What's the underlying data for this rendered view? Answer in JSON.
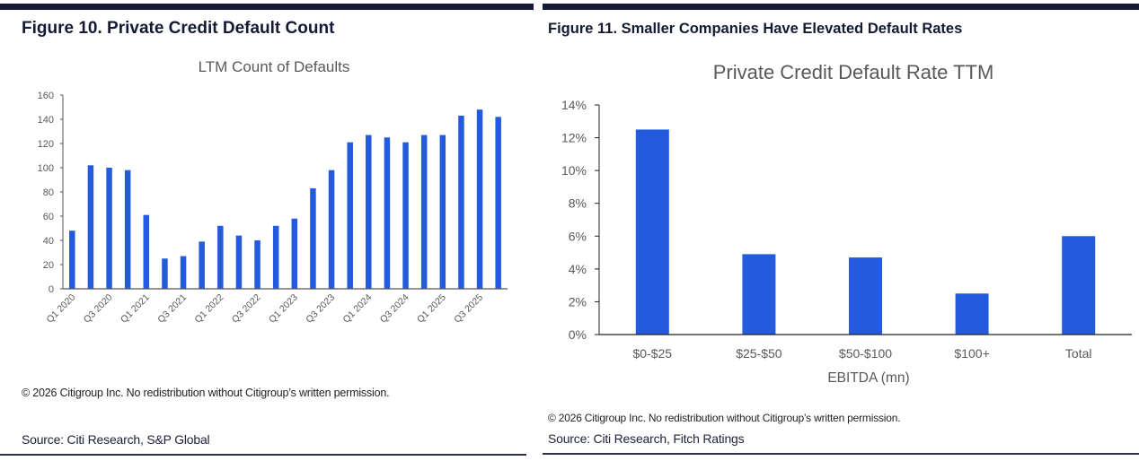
{
  "figure10": {
    "title": "Figure 10. Private Credit Default Count",
    "copyright": "© 2026 Citigroup Inc. No redistribution without Citigroup’s written permission.",
    "source": "Source: Citi Research, S&P Global"
  },
  "figure11": {
    "title": "Figure 11. Smaller Companies Have Elevated Default Rates",
    "copyright": "© 2026 Citigroup Inc. No redistribution without Citigroup’s written permission.",
    "source": "Source: Citi Research, Fitch Ratings"
  },
  "colors": {
    "bar": "#245bde",
    "axis": "#555555",
    "tick_text": "#595959",
    "title_text": "#595959"
  },
  "chart_data": [
    {
      "type": "bar",
      "title": "LTM Count of Defaults",
      "xlabel": "",
      "ylabel": "",
      "ylim": [
        0,
        160
      ],
      "yticks": [
        0,
        20,
        40,
        60,
        80,
        100,
        120,
        140,
        160
      ],
      "ytick_labels": [
        "0",
        "20",
        "40",
        "60",
        "80",
        "100",
        "120",
        "140",
        "160"
      ],
      "categories": [
        "Q1 2020",
        "Q2 2020",
        "Q3 2020",
        "Q4 2020",
        "Q1 2021",
        "Q2 2021",
        "Q3 2021",
        "Q4 2021",
        "Q1 2022",
        "Q2 2022",
        "Q3 2022",
        "Q4 2022",
        "Q1 2023",
        "Q2 2023",
        "Q3 2023",
        "Q4 2023",
        "Q1 2024",
        "Q2 2024",
        "Q3 2024",
        "Q4 2024",
        "Q1 2025",
        "Q2 2025",
        "Q3 2025",
        "Q4 2025"
      ],
      "xtick_labels_shown": [
        "Q1 2020",
        "Q3 2020",
        "Q1 2021",
        "Q3 2021",
        "Q1 2022",
        "Q3 2022",
        "Q1 2023",
        "Q3 2023",
        "Q1 2024",
        "Q3 2024",
        "Q1 2025",
        "Q3 2025"
      ],
      "values": [
        48,
        102,
        100,
        98,
        61,
        25,
        27,
        39,
        52,
        44,
        40,
        52,
        58,
        83,
        98,
        121,
        127,
        125,
        121,
        127,
        127,
        143,
        148,
        142
      ],
      "grid": false,
      "legend": "none"
    },
    {
      "type": "bar",
      "title": "Private Credit Default Rate TTM",
      "xlabel": "EBITDA (mn)",
      "ylabel": "",
      "ylim": [
        0,
        14
      ],
      "yticks": [
        0,
        2,
        4,
        6,
        8,
        10,
        12,
        14
      ],
      "ytick_labels": [
        "0%",
        "2%",
        "4%",
        "6%",
        "8%",
        "10%",
        "12%",
        "14%"
      ],
      "categories": [
        "$0-$25",
        "$25-$50",
        "$50-$100",
        "$100+",
        "Total"
      ],
      "values": [
        12.5,
        4.9,
        4.7,
        2.5,
        6.0
      ],
      "unit": "%",
      "grid": false,
      "legend": "none"
    }
  ]
}
